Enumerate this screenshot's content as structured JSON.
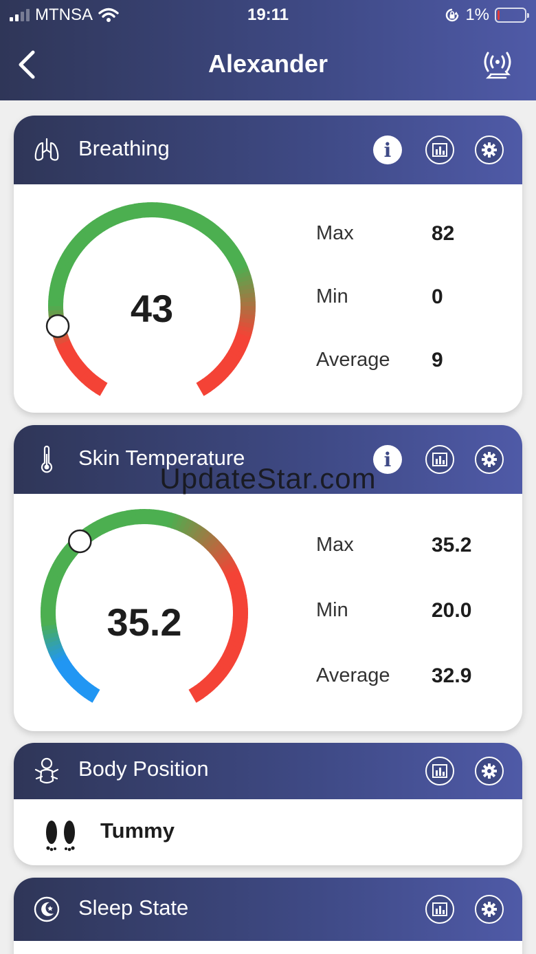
{
  "status_bar": {
    "carrier": "MTNSA",
    "time": "19:11",
    "battery_percent": "1%",
    "signal_bars_active": 2,
    "signal_bars_total": 4
  },
  "nav": {
    "title": "Alexander",
    "back_icon": "chevron-left-icon",
    "connect_icon": "wireless-sync-icon"
  },
  "breathing": {
    "title": "Breathing",
    "icon": "lungs-icon",
    "value": "43",
    "max_label": "Max",
    "max": "82",
    "min_label": "Min",
    "min": "0",
    "avg_label": "Average",
    "avg": "9",
    "gauge_fraction": 0.16,
    "colors": {
      "normal": "#4caf50",
      "alert": "#f44336"
    }
  },
  "skin_temperature": {
    "title": "Skin Temperature",
    "icon": "thermometer-icon",
    "value": "35.2",
    "max_label": "Max",
    "max": "35.2",
    "min_label": "Min",
    "min": "20.0",
    "avg_label": "Average",
    "avg": "32.9",
    "gauge_fraction": 0.36,
    "colors": {
      "cold": "#2196f3",
      "normal": "#4caf50",
      "hot": "#f44336"
    }
  },
  "body_position": {
    "title": "Body Position",
    "icon": "baby-icon",
    "value_icon": "feet-icon",
    "value": "Tummy"
  },
  "sleep_state": {
    "title": "Sleep State",
    "icon": "moon-icon"
  },
  "watermark": "UpdateStar.com",
  "theme": {
    "header_start": "#2f3658",
    "header_end": "#4f5aa7"
  }
}
